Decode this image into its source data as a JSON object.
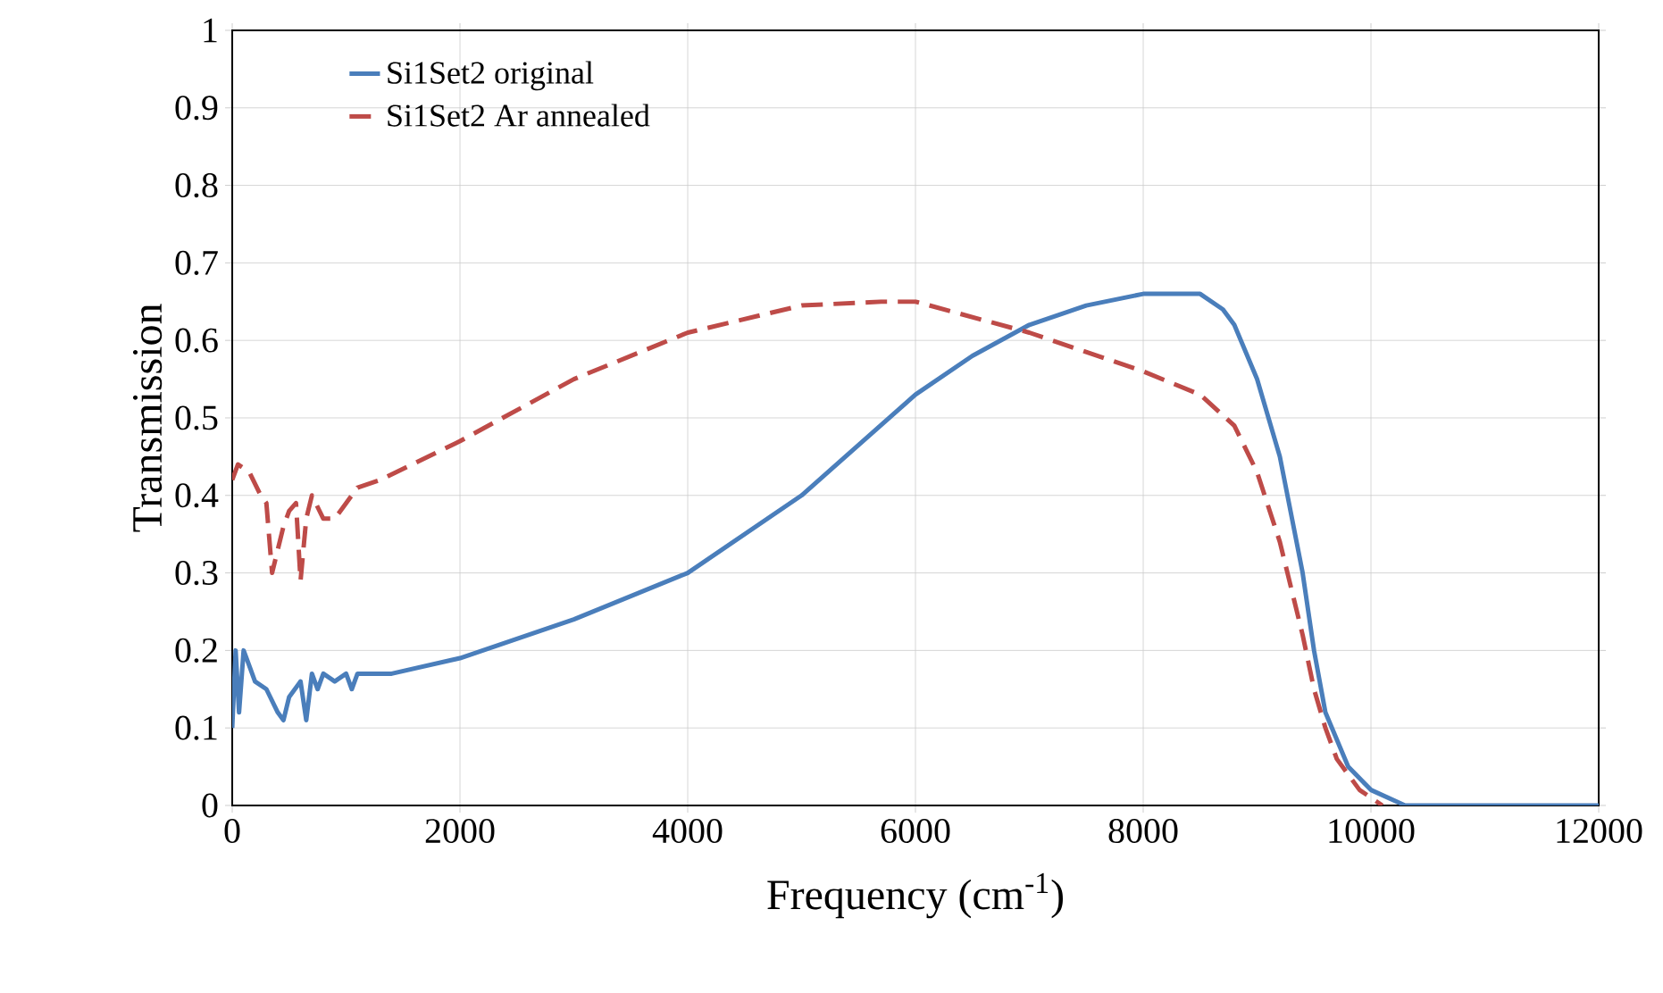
{
  "chart_data": {
    "type": "line",
    "xlabel": "Frequency (cm$^{-1}$)",
    "ylabel": "Transmission",
    "xlim": [
      0,
      12000
    ],
    "ylim": [
      0,
      1
    ],
    "xticks": [
      0,
      2000,
      4000,
      6000,
      8000,
      10000,
      12000
    ],
    "yticks": [
      0,
      0.1,
      0.2,
      0.3,
      0.4,
      0.5,
      0.6,
      0.7,
      0.8,
      0.9,
      1
    ],
    "grid": true,
    "legend": "top left",
    "marker": "none",
    "series": [
      {
        "name": "Si1Set2 original",
        "color": "#4a7ebb",
        "line_style": "solid",
        "x": [
          0,
          30,
          60,
          100,
          150,
          200,
          300,
          400,
          450,
          500,
          600,
          650,
          700,
          750,
          800,
          900,
          1000,
          1050,
          1100,
          1400,
          2000,
          3000,
          4000,
          5000,
          6000,
          6500,
          7000,
          7500,
          8000,
          8500,
          8700,
          8800,
          9000,
          9200,
          9400,
          9500,
          9600,
          9800,
          10000,
          10300,
          12000
        ],
        "values": [
          0.1,
          0.2,
          0.12,
          0.2,
          0.18,
          0.16,
          0.15,
          0.12,
          0.11,
          0.14,
          0.16,
          0.11,
          0.17,
          0.15,
          0.17,
          0.16,
          0.17,
          0.15,
          0.17,
          0.17,
          0.19,
          0.24,
          0.3,
          0.4,
          0.53,
          0.58,
          0.62,
          0.645,
          0.66,
          0.66,
          0.64,
          0.62,
          0.55,
          0.45,
          0.3,
          0.2,
          0.12,
          0.05,
          0.02,
          0,
          0
        ]
      },
      {
        "name": "Si1Set2 Ar annealed",
        "color": "#be4b48",
        "line_style": "dashed",
        "x": [
          0,
          50,
          150,
          250,
          300,
          350,
          400,
          450,
          500,
          560,
          600,
          650,
          700,
          800,
          900,
          1000,
          1100,
          1300,
          2000,
          3000,
          4000,
          5000,
          5700,
          6000,
          7000,
          8000,
          8500,
          8800,
          9000,
          9200,
          9400,
          9500,
          9600,
          9700,
          9900,
          10100
        ],
        "values": [
          0.42,
          0.44,
          0.43,
          0.4,
          0.39,
          0.3,
          0.33,
          0.36,
          0.38,
          0.39,
          0.29,
          0.37,
          0.4,
          0.37,
          0.37,
          0.39,
          0.41,
          0.42,
          0.47,
          0.55,
          0.61,
          0.645,
          0.65,
          0.65,
          0.61,
          0.56,
          0.53,
          0.49,
          0.43,
          0.34,
          0.22,
          0.15,
          0.1,
          0.06,
          0.02,
          0
        ]
      }
    ]
  }
}
